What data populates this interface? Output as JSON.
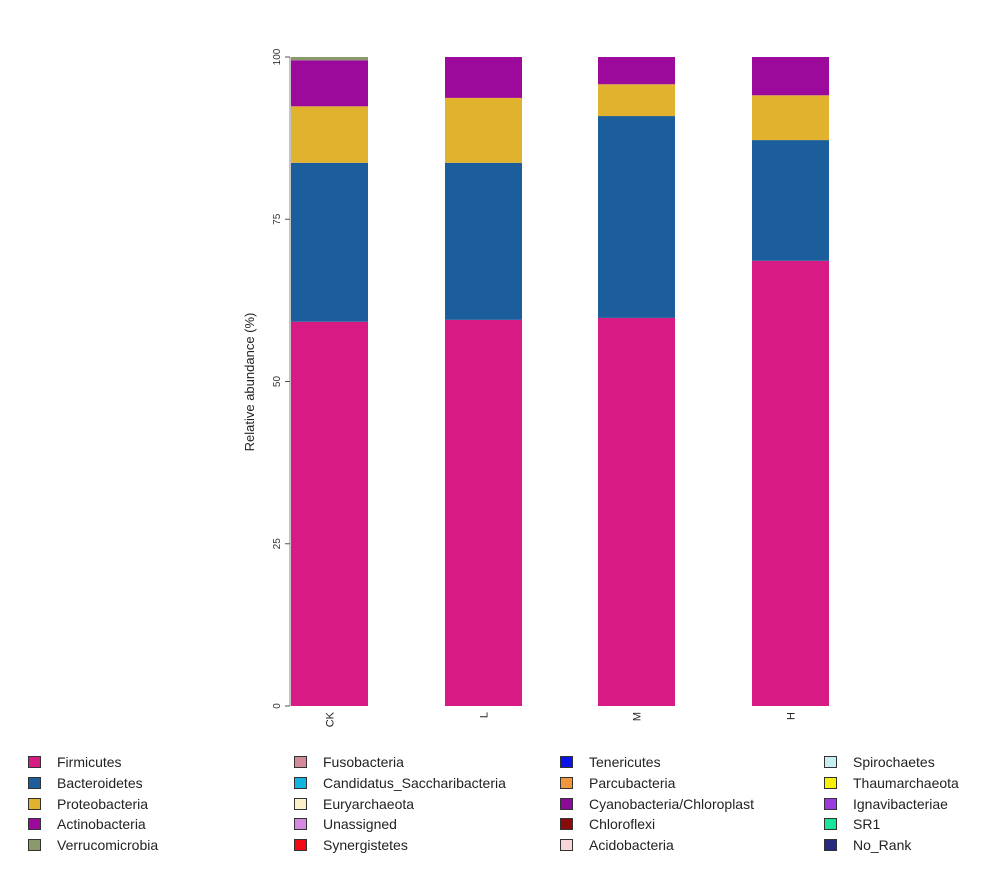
{
  "chart_data": {
    "type": "bar",
    "stacked": true,
    "title": "",
    "xlabel": "",
    "ylabel": "Relative abundance (%)",
    "ylim": [
      0,
      100
    ],
    "yticks": [
      0,
      25,
      50,
      75,
      100
    ],
    "ytick_labels": [
      "0",
      "25",
      "50",
      "75",
      "100"
    ],
    "grid": false,
    "legend_position": "bottom",
    "categories": [
      "CK",
      "L",
      "M",
      "H"
    ],
    "series": [
      {
        "name": "Firmicutes",
        "color": "#D81B84",
        "values": [
          59.2,
          59.5,
          59.8,
          68.6
        ]
      },
      {
        "name": "Bacteroidetes",
        "color": "#1C5E9B",
        "values": [
          24.5,
          24.2,
          31.1,
          18.6
        ]
      },
      {
        "name": "Proteobacteria",
        "color": "#E0B22E",
        "values": [
          8.7,
          10.0,
          4.9,
          6.9
        ]
      },
      {
        "name": "Actinobacteria",
        "color": "#9B0A9B",
        "values": [
          7.1,
          6.3,
          4.2,
          5.9
        ]
      },
      {
        "name": "Verrucomicrobia",
        "color": "#8A9A6A",
        "values": [
          0.5,
          0.0,
          0.0,
          0.0
        ]
      },
      {
        "name": "Fusobacteria",
        "color": "#D48A98",
        "values": [
          0,
          0,
          0,
          0
        ]
      },
      {
        "name": "Candidatus_Saccharibacteria",
        "color": "#14B4E0",
        "values": [
          0,
          0,
          0,
          0
        ]
      },
      {
        "name": "Euryarchaeota",
        "color": "#FBF0C8",
        "values": [
          0,
          0,
          0,
          0
        ]
      },
      {
        "name": "Unassigned",
        "color": "#D48AE0",
        "values": [
          0,
          0,
          0,
          0
        ]
      },
      {
        "name": "Synergistetes",
        "color": "#F00A14",
        "values": [
          0,
          0,
          0,
          0
        ]
      },
      {
        "name": "Tenericutes",
        "color": "#0A14E8",
        "values": [
          0,
          0,
          0,
          0
        ]
      },
      {
        "name": "Parcubacteria",
        "color": "#F0963C",
        "values": [
          0,
          0,
          0,
          0
        ]
      },
      {
        "name": "Cyanobacteria/Chloroplast",
        "color": "#8C0A9A",
        "values": [
          0,
          0,
          0,
          0
        ]
      },
      {
        "name": "Chloroflexi",
        "color": "#8C0A0A",
        "values": [
          0,
          0,
          0,
          0
        ]
      },
      {
        "name": "Acidobacteria",
        "color": "#F6D6D8",
        "values": [
          0,
          0,
          0,
          0
        ]
      },
      {
        "name": "Spirochaetes",
        "color": "#C6EEF0",
        "values": [
          0,
          0,
          0,
          0
        ]
      },
      {
        "name": "Thaumarchaeota",
        "color": "#F6F00A",
        "values": [
          0,
          0,
          0,
          0
        ]
      },
      {
        "name": "Ignavibacteriae",
        "color": "#9A3AE0",
        "values": [
          0,
          0,
          0,
          0
        ]
      },
      {
        "name": "SR1",
        "color": "#1AE69A",
        "values": [
          0,
          0,
          0,
          0
        ]
      },
      {
        "name": "No_Rank",
        "color": "#282A80",
        "values": [
          0,
          0,
          0,
          0
        ]
      }
    ]
  }
}
